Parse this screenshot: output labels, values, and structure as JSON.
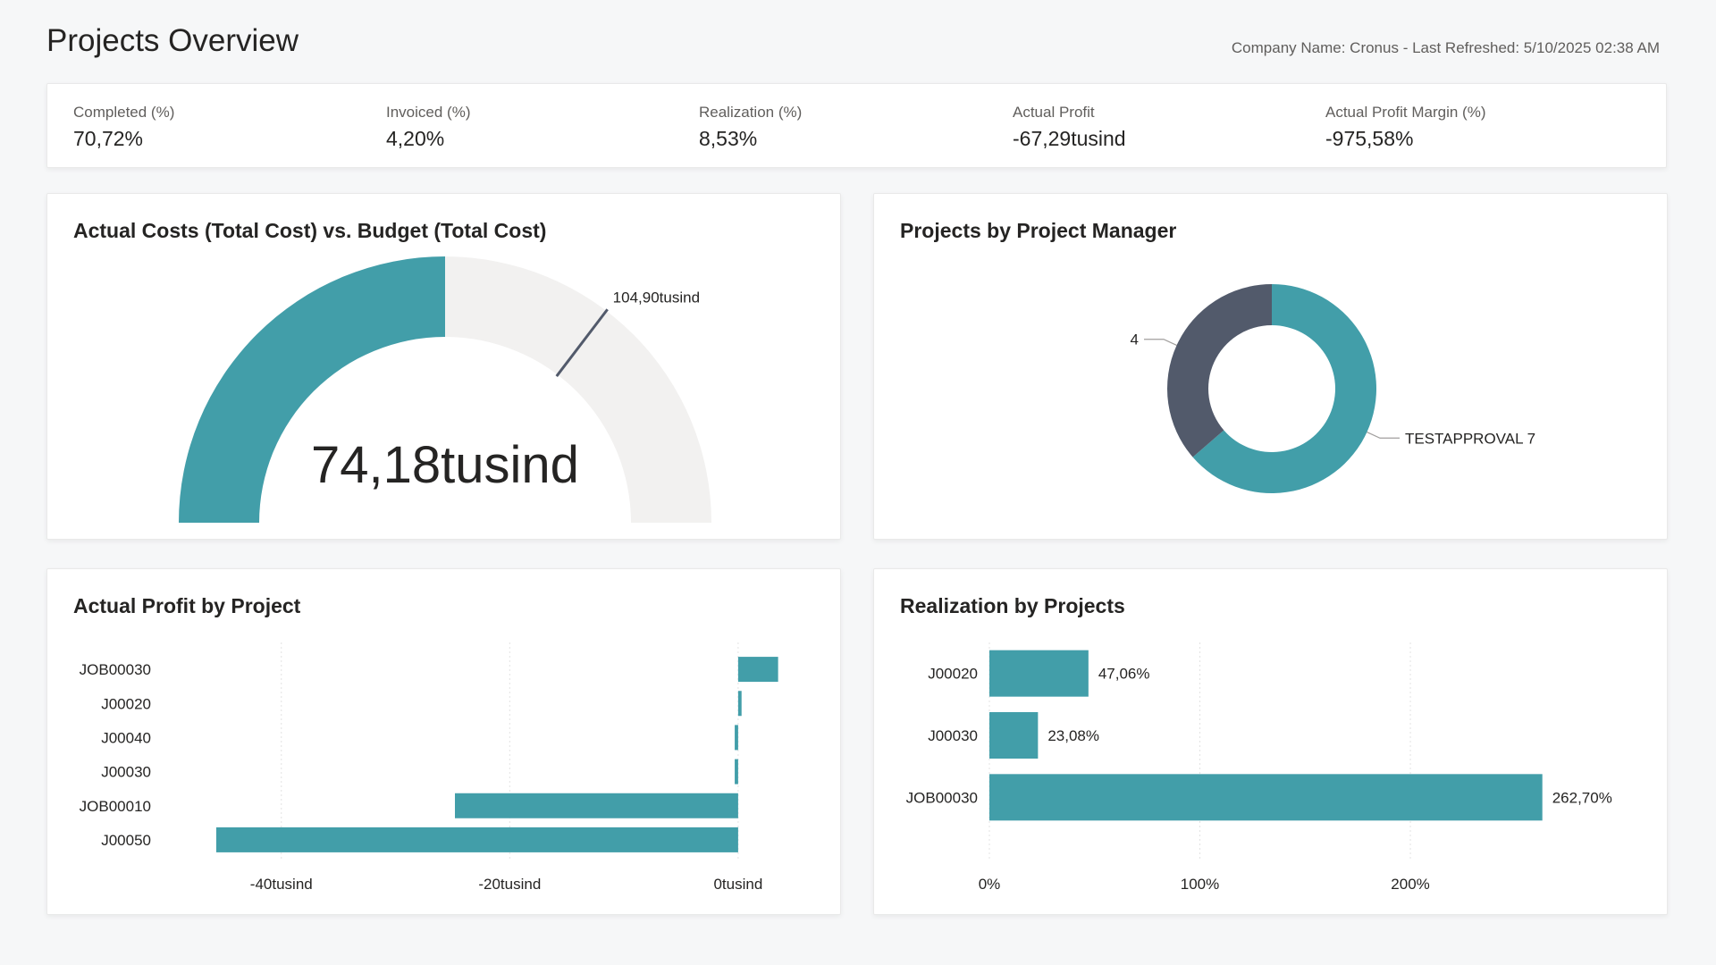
{
  "page": {
    "title": "Projects Overview",
    "meta": "Company Name: Cronus - Last Refreshed: 5/10/2025 02:38 AM"
  },
  "colors": {
    "accent": "#429ea9",
    "track": "#f2f1f0",
    "donut_secondary": "#525a6b",
    "needle": "#525a6b",
    "grid": "#e3e3e3"
  },
  "kpis": [
    {
      "label": "Completed (%)",
      "value": "70,72%"
    },
    {
      "label": "Invoiced (%)",
      "value": "4,20%"
    },
    {
      "label": "Realization (%)",
      "value": "8,53%"
    },
    {
      "label": "Actual Profit",
      "value": "-67,29tusind"
    },
    {
      "label": "Actual Profit Margin (%)",
      "value": "-975,58%"
    }
  ],
  "cards": {
    "gauge_title": "Actual Costs (Total Cost) vs. Budget (Total Cost)",
    "donut_title": "Projects by Project Manager",
    "profit_title": "Actual Profit by Project",
    "realization_title": "Realization by Projects"
  },
  "chart_data": [
    {
      "type": "gauge",
      "title": "Actual Costs (Total Cost) vs. Budget (Total Cost)",
      "value": 74.18,
      "value_label": "74,18tusind",
      "target": 104.9,
      "target_label": "104,90tusind",
      "min": 0,
      "max": 148.36,
      "unit": "tusind"
    },
    {
      "type": "pie",
      "variant": "donut",
      "title": "Projects by Project Manager",
      "slices": [
        {
          "name": "TESTAPPROVAL",
          "value": 7,
          "label": "TESTAPPROVAL 7",
          "color": "#429ea9"
        },
        {
          "name": "",
          "value": 4,
          "label": "4",
          "color": "#525a6b"
        }
      ]
    },
    {
      "type": "bar",
      "orientation": "horizontal",
      "title": "Actual Profit by Project",
      "categories": [
        "JOB00030",
        "J00020",
        "J00040",
        "J00030",
        "JOB00010",
        "J00050"
      ],
      "values": [
        3.5,
        0.3,
        -0.3,
        -0.3,
        -24.8,
        -45.7
      ],
      "xlim": [
        -50,
        4
      ],
      "ticks": [
        -40,
        -20,
        0
      ],
      "tick_labels": [
        "-40tusind",
        "-20tusind",
        "0tusind"
      ],
      "grid": true
    },
    {
      "type": "bar",
      "orientation": "horizontal",
      "title": "Realization by Projects",
      "categories": [
        "J00020",
        "J00030",
        "JOB00030"
      ],
      "values": [
        47.06,
        23.08,
        262.7
      ],
      "data_labels": [
        "47,06%",
        "23,08%",
        "262,70%"
      ],
      "xlim": [
        0,
        290
      ],
      "ticks": [
        0,
        100,
        200
      ],
      "tick_labels": [
        "0%",
        "100%",
        "200%"
      ],
      "grid": true
    }
  ]
}
